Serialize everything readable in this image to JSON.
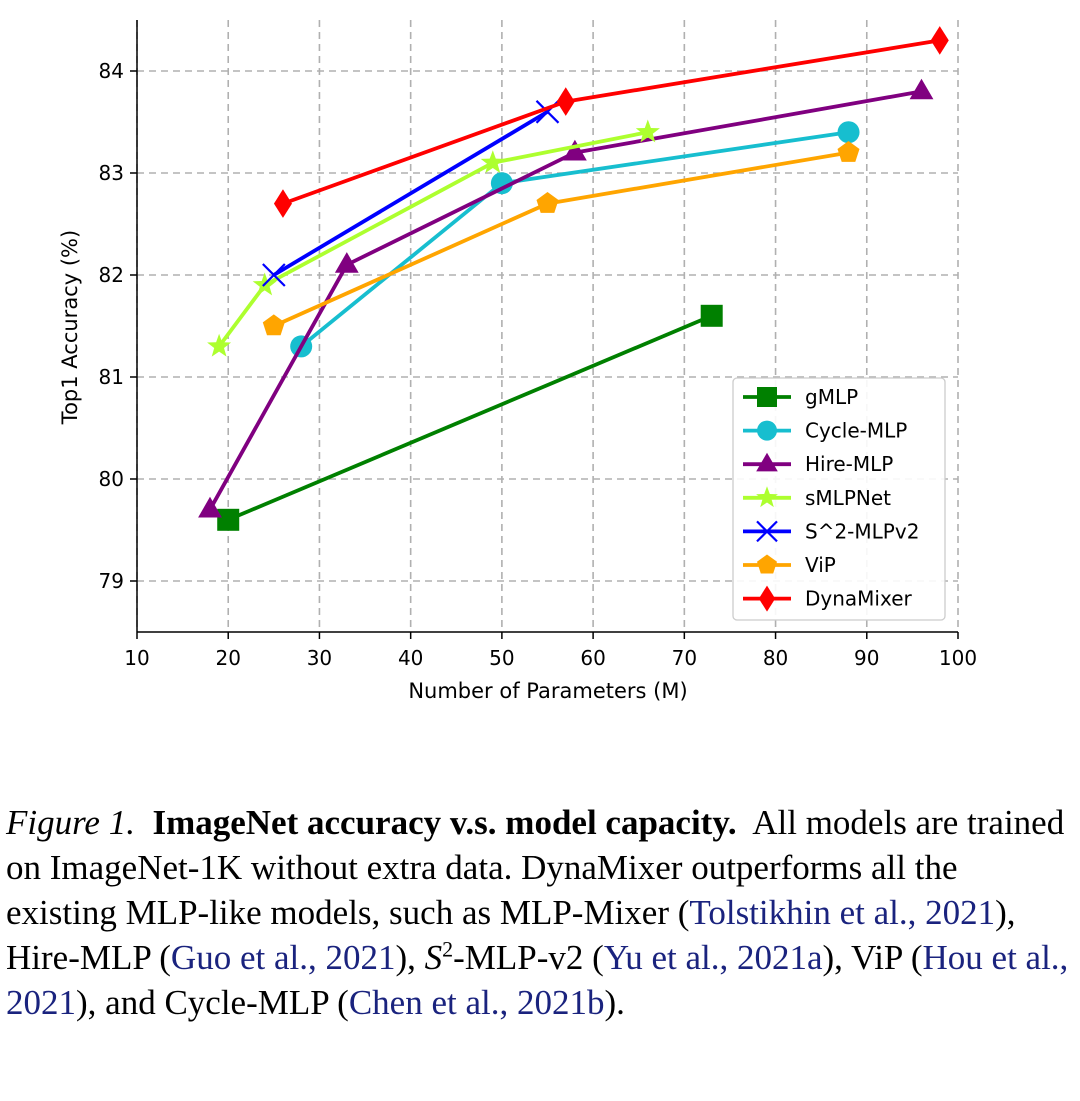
{
  "chart_data": {
    "type": "line",
    "xlabel": "Number of Parameters (M)",
    "ylabel": "Top1 Accuracy (%)",
    "xlim": [
      10,
      100
    ],
    "ylim": [
      78.5,
      84.5
    ],
    "xticks": [
      10,
      20,
      30,
      40,
      50,
      60,
      70,
      80,
      90,
      100
    ],
    "yticks": [
      79,
      80,
      81,
      82,
      83,
      84
    ],
    "grid": true,
    "legend_position": "bottom-right",
    "series": [
      {
        "name": "gMLP",
        "color": "#008000",
        "marker": "square",
        "x": [
          20,
          73
        ],
        "y": [
          79.6,
          81.6
        ]
      },
      {
        "name": "Cycle-MLP",
        "color": "#17becf",
        "marker": "circle",
        "x": [
          28,
          50,
          88
        ],
        "y": [
          81.3,
          82.9,
          83.4
        ]
      },
      {
        "name": "Hire-MLP",
        "color": "#800080",
        "marker": "triangle",
        "x": [
          18,
          33,
          58,
          96
        ],
        "y": [
          79.7,
          82.1,
          83.2,
          83.8
        ]
      },
      {
        "name": "sMLPNet",
        "color": "#adff2f",
        "marker": "star",
        "x": [
          19,
          24,
          49,
          66
        ],
        "y": [
          81.3,
          81.9,
          83.1,
          83.4
        ]
      },
      {
        "name": "S^2-MLPv2",
        "color": "#0000ff",
        "marker": "x",
        "x": [
          25,
          55
        ],
        "y": [
          82.0,
          83.6
        ]
      },
      {
        "name": "ViP",
        "color": "#ffa500",
        "marker": "pentagon",
        "x": [
          25,
          55,
          88
        ],
        "y": [
          81.5,
          82.7,
          83.2
        ]
      },
      {
        "name": "DynaMixer",
        "color": "#ff0000",
        "marker": "diamond",
        "x": [
          26,
          57,
          98
        ],
        "y": [
          82.7,
          83.7,
          84.3
        ]
      }
    ]
  },
  "caption": {
    "figure_number": "Figure 1.",
    "title": "ImageNet accuracy v.s. model capacity.",
    "t1": "All models are trained on ImageNet-1K without extra data. DynaMixer outperforms all the existing MLP-like models, such as MLP-Mixer (",
    "c1": "Tolstikhin et al., 2021",
    "t2": "), Hire-MLP (",
    "c2": "Guo et al., 2021",
    "t3": "), ",
    "s_letter": "S",
    "sup": "2",
    "t4": "-MLP-v2 (",
    "c3": "Yu et al., 2021a",
    "t5": "), ViP (",
    "c4": "Hou et al., 2021",
    "t6": "), and Cycle-MLP (",
    "c5": "Chen et al., 2021b",
    "t7": ")."
  }
}
